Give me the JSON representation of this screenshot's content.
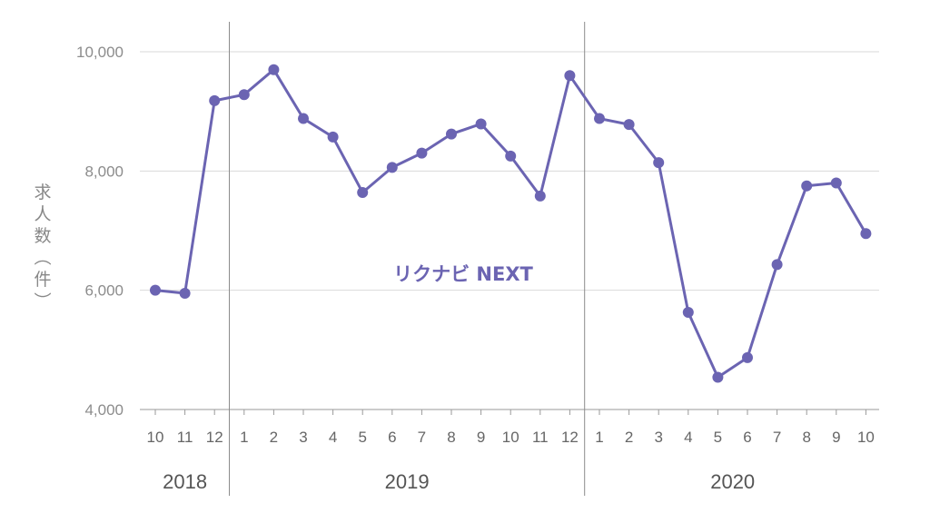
{
  "chart_data": {
    "type": "line",
    "ylabel": "求人数（件）",
    "ylim": [
      4000,
      10000
    ],
    "yticks": [
      "4,000",
      "6,000",
      "8,000",
      "10,000"
    ],
    "ytick_values": [
      4000,
      6000,
      8000,
      10000
    ],
    "x_month_labels": [
      "10",
      "11",
      "12",
      "1",
      "2",
      "3",
      "4",
      "5",
      "6",
      "7",
      "8",
      "9",
      "10",
      "11",
      "12",
      "1",
      "2",
      "3",
      "4",
      "5",
      "6",
      "7",
      "8",
      "9",
      "10"
    ],
    "years": [
      {
        "label": "2018",
        "start": 0,
        "end": 2
      },
      {
        "label": "2019",
        "start": 3,
        "end": 14
      },
      {
        "label": "2020",
        "start": 15,
        "end": 24
      }
    ],
    "grid": true,
    "series": [
      {
        "name": "リクナビ NEXT",
        "color": "#6b64b2",
        "values": [
          6000,
          5950,
          9180,
          9280,
          9700,
          8880,
          8570,
          7640,
          8060,
          8300,
          8620,
          8790,
          8250,
          7580,
          9600,
          8880,
          8780,
          8140,
          5630,
          4540,
          4870,
          6430,
          7750,
          7800,
          6950
        ]
      }
    ]
  }
}
